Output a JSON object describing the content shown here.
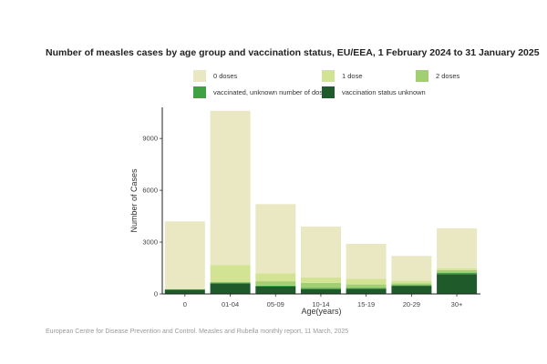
{
  "chart_data": {
    "type": "bar",
    "stacked": true,
    "title": "Number of measles cases by age group and vaccination status, EU/EEA, 1 February 2024 to 31 January 2025",
    "xlabel": "Age(years)",
    "ylabel": "Number of Cases",
    "ylim": [
      0,
      10800
    ],
    "yticks": [
      0,
      3000,
      6000,
      9000
    ],
    "grid": false,
    "legend_position": "top",
    "categories": [
      "0",
      "01-04",
      "05-09",
      "10-14",
      "15-19",
      "20-29",
      "30+"
    ],
    "series": [
      {
        "name": "vaccination status unknown",
        "color": "#1e5a2a",
        "values": [
          250,
          600,
          420,
          280,
          300,
          470,
          1150
        ]
      },
      {
        "name": "vaccinated, unknown number of doses",
        "color": "#3fa142",
        "values": [
          20,
          60,
          60,
          60,
          50,
          40,
          80
        ]
      },
      {
        "name": "2 doses",
        "color": "#a3cf74",
        "values": [
          0,
          0,
          250,
          300,
          200,
          100,
          150
        ]
      },
      {
        "name": "1 dose",
        "color": "#d2e394",
        "values": [
          30,
          1020,
          460,
          320,
          330,
          160,
          110
        ]
      },
      {
        "name": "0 doses",
        "color": "#e9e8c2",
        "values": [
          3900,
          8920,
          4010,
          2940,
          2020,
          1430,
          2310
        ]
      }
    ]
  },
  "legend_order": [
    "0 doses",
    "1 dose",
    "2 doses",
    "vaccinated, unknown number of doses",
    "vaccination status unknown"
  ],
  "source": "European Centre for Disease Prevention and Control. Measles and Rubella monthly report, 11 March, 2025"
}
